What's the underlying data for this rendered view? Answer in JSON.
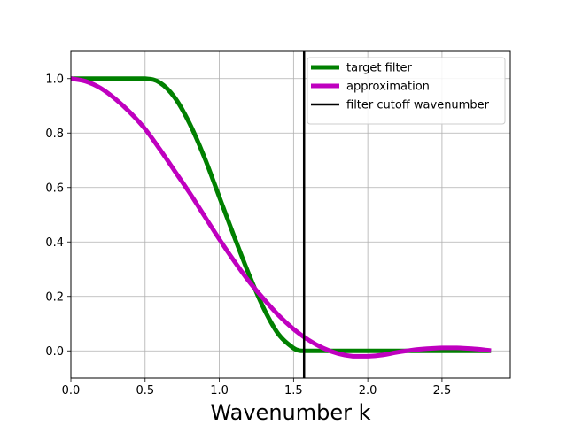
{
  "chart_data": {
    "type": "line",
    "xlabel": "Wavenumber k",
    "ylabel": "",
    "xlim": [
      0,
      2.96
    ],
    "ylim": [
      -0.1,
      1.1
    ],
    "grid": true,
    "legend_placement": "top-right",
    "x_ticks": [
      0.0,
      0.5,
      1.0,
      1.5,
      2.0,
      2.5
    ],
    "x_tick_labels": [
      "0.0",
      "0.5",
      "1.0",
      "1.5",
      "2.0",
      "2.5"
    ],
    "y_ticks": [
      0.0,
      0.2,
      0.4,
      0.6,
      0.8,
      1.0
    ],
    "y_tick_labels": [
      "0.0",
      "0.2",
      "0.4",
      "0.6",
      "0.8",
      "1.0"
    ],
    "series": [
      {
        "name": "target filter",
        "color": "#008000",
        "x": [
          0.0,
          0.3,
          0.5,
          0.6,
          0.7,
          0.8,
          0.9,
          1.0,
          1.1,
          1.2,
          1.3,
          1.4,
          1.5,
          1.55,
          1.6,
          2.0,
          2.5,
          2.83
        ],
        "values": [
          1.0,
          1.0,
          1.0,
          0.985,
          0.93,
          0.835,
          0.71,
          0.565,
          0.42,
          0.28,
          0.155,
          0.06,
          0.01,
          0.0,
          0.0,
          0.0,
          0.0,
          0.0
        ]
      },
      {
        "name": "approximation",
        "color": "#bf00bf",
        "x": [
          0.0,
          0.1,
          0.2,
          0.3,
          0.4,
          0.5,
          0.6,
          0.7,
          0.8,
          0.9,
          1.0,
          1.1,
          1.2,
          1.3,
          1.4,
          1.5,
          1.6,
          1.7,
          1.8,
          1.9,
          2.0,
          2.1,
          2.2,
          2.3,
          2.4,
          2.5,
          2.6,
          2.7,
          2.8,
          2.83
        ],
        "values": [
          1.0,
          0.99,
          0.965,
          0.925,
          0.875,
          0.815,
          0.74,
          0.66,
          0.58,
          0.495,
          0.41,
          0.33,
          0.255,
          0.19,
          0.13,
          0.08,
          0.04,
          0.01,
          -0.01,
          -0.02,
          -0.02,
          -0.015,
          -0.005,
          0.003,
          0.008,
          0.011,
          0.011,
          0.008,
          0.003,
          0.001
        ]
      }
    ],
    "vlines": [
      {
        "name": "filter cutoff wavenumber",
        "x": 1.5708,
        "color": "#000000"
      }
    ]
  }
}
